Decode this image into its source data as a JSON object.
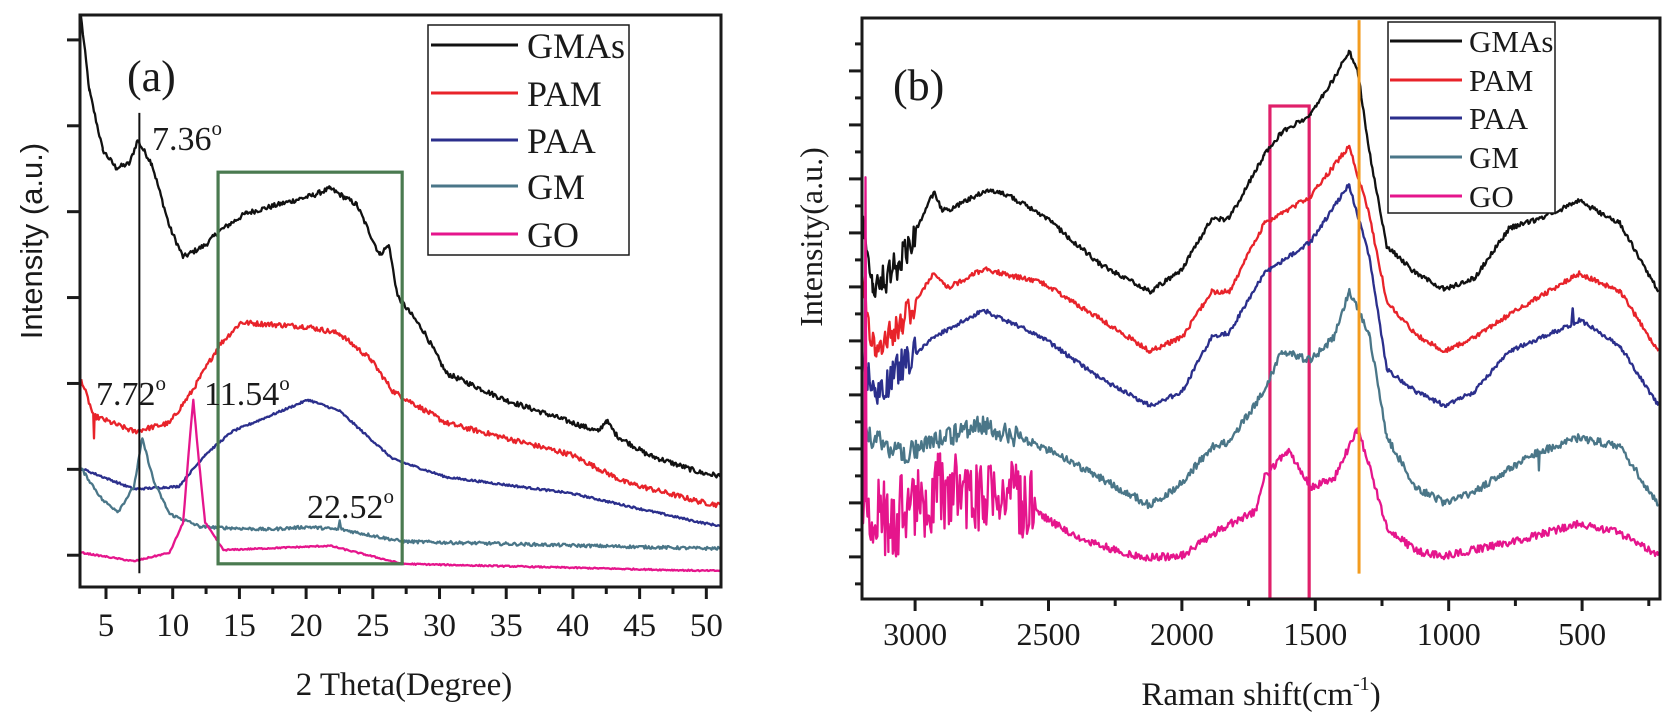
{
  "chart_data": [
    {
      "type": "line",
      "panel_label": "(a)",
      "xlabel": "2 Theta(Degree)",
      "ylabel": "Intensity (a.u.)",
      "xlim": [
        3.05,
        51.1
      ],
      "ylim": [
        -0.37,
        6.29
      ],
      "x_ticks": [
        5,
        10,
        15,
        20,
        25,
        30,
        35,
        40,
        45,
        50
      ],
      "x_tick_labels": [
        "5",
        "10",
        "15",
        "20",
        "25",
        "30",
        "35",
        "40",
        "45",
        "50"
      ],
      "x_minor_ticks": [
        7.5,
        12.5,
        17.5,
        22.5,
        27.5,
        32.5,
        37.5,
        42.5,
        47.5
      ],
      "y_ticks_unlabeled": [
        0,
        1,
        2,
        3,
        4,
        5,
        6
      ],
      "legend": "top-right",
      "grid": false,
      "series": [
        {
          "name": "GMAs",
          "color": "#111111",
          "points": [
            [
              3.1,
              6.3
            ],
            [
              3.75,
              5.41
            ],
            [
              4.75,
              4.72
            ],
            [
              5.75,
              4.51
            ],
            [
              6.76,
              4.56
            ],
            [
              7.36,
              4.83
            ],
            [
              8.43,
              4.56
            ],
            [
              9.77,
              3.82
            ],
            [
              10.78,
              3.47
            ],
            [
              12.43,
              3.61
            ],
            [
              13.46,
              3.77
            ],
            [
              15.47,
              3.98
            ],
            [
              20.5,
              4.19
            ],
            [
              21.8,
              4.27
            ],
            [
              23.8,
              4.08
            ],
            [
              25.5,
              3.5
            ],
            [
              26.2,
              3.61
            ],
            [
              26.85,
              3.02
            ],
            [
              28.85,
              2.6
            ],
            [
              30.5,
              2.12
            ],
            [
              34.9,
              1.81
            ],
            [
              38.9,
              1.6
            ],
            [
              41.9,
              1.44
            ],
            [
              42.5,
              1.57
            ],
            [
              43.3,
              1.39
            ],
            [
              45.6,
              1.17
            ],
            [
              49.6,
              0.96
            ],
            [
              51.1,
              0.92
            ]
          ]
        },
        {
          "name": "PAM",
          "color": "#e8232a",
          "points": [
            [
              3.14,
              2.05
            ],
            [
              3.9,
              1.7
            ],
            [
              4.05,
              1.62
            ],
            [
              4.1,
              1.36
            ],
            [
              4.15,
              1.62
            ],
            [
              7.1,
              1.44
            ],
            [
              9.77,
              1.54
            ],
            [
              11.45,
              1.91
            ],
            [
              13.46,
              2.44
            ],
            [
              15.1,
              2.71
            ],
            [
              20.15,
              2.66
            ],
            [
              22.5,
              2.58
            ],
            [
              24.85,
              2.28
            ],
            [
              26.5,
              1.91
            ],
            [
              30.5,
              1.54
            ],
            [
              39.9,
              1.17
            ],
            [
              43.9,
              0.85
            ],
            [
              49.6,
              0.62
            ],
            [
              51.1,
              0.58
            ]
          ]
        },
        {
          "name": "PAA",
          "color": "#2b2f8c",
          "points": [
            [
              3.14,
              1.01
            ],
            [
              7.1,
              0.77
            ],
            [
              10.45,
              0.8
            ],
            [
              12.43,
              1.17
            ],
            [
              14.45,
              1.44
            ],
            [
              20.15,
              1.81
            ],
            [
              22.5,
              1.68
            ],
            [
              26.5,
              1.12
            ],
            [
              30.5,
              0.91
            ],
            [
              39.9,
              0.72
            ],
            [
              49.6,
              0.38
            ],
            [
              51.1,
              0.34
            ]
          ]
        },
        {
          "name": "GM",
          "color": "#4a7688",
          "points": [
            [
              3.14,
              1.01
            ],
            [
              4.75,
              0.64
            ],
            [
              5.92,
              0.51
            ],
            [
              7.1,
              0.8
            ],
            [
              7.72,
              1.36
            ],
            [
              8.6,
              0.85
            ],
            [
              9.77,
              0.48
            ],
            [
              12.1,
              0.33
            ],
            [
              17.15,
              0.3
            ],
            [
              20.15,
              0.33
            ],
            [
              22.4,
              0.3
            ],
            [
              22.52,
              0.4
            ],
            [
              22.65,
              0.3
            ],
            [
              27.2,
              0.16
            ],
            [
              49.6,
              0.08
            ],
            [
              51.1,
              0.08
            ]
          ]
        },
        {
          "name": "GO",
          "color": "#e5158c",
          "points": [
            [
              3.14,
              0.03
            ],
            [
              7.1,
              -0.07
            ],
            [
              9.77,
              0.03
            ],
            [
              10.78,
              0.38
            ],
            [
              11.2,
              1.2
            ],
            [
              11.54,
              1.81
            ],
            [
              11.9,
              1.2
            ],
            [
              12.43,
              0.38
            ],
            [
              13.8,
              0.06
            ],
            [
              21.8,
              0.11
            ],
            [
              27.2,
              -0.1
            ],
            [
              49.6,
              -0.18
            ],
            [
              51.1,
              -0.18
            ]
          ]
        }
      ],
      "annotations": [
        {
          "text": "7.36",
          "sup": "o",
          "x": 7.36
        },
        {
          "text": "7.72",
          "sup": "o",
          "x": 7.72
        },
        {
          "text": "11.54",
          "sup": "o",
          "x": 11.54
        },
        {
          "text": "22.52",
          "sup": "o",
          "x": 22.52
        }
      ],
      "reference_line": {
        "x": 7.5,
        "y_range": [
          -0.21,
          5.15
        ],
        "color": "#111111"
      },
      "highlight_box": {
        "x_range": [
          13.4,
          27.2
        ],
        "y_range": [
          -0.1,
          4.46
        ],
        "color": "#4a7a50"
      }
    },
    {
      "type": "line",
      "panel_label": "(b)",
      "xlabel_parts": [
        "Raman shift(cm",
        "-1",
        ")"
      ],
      "ylabel": "Intensity(a.u.)",
      "xlim": [
        3199,
        208
      ],
      "ylim": [
        -0.78,
        9.98
      ],
      "x_ticks": [
        3000,
        2500,
        2000,
        1500,
        1000,
        500
      ],
      "x_tick_labels": [
        "3000",
        "2500",
        "2000",
        "1500",
        "1000",
        "500"
      ],
      "x_minor_ticks": [
        2750,
        2250,
        1750,
        1250,
        750,
        250
      ],
      "y_ticks_unlabeled": [
        0,
        1,
        2,
        3,
        4,
        5,
        6,
        7,
        8,
        9
      ],
      "y_minor_ticks": [
        -0.5,
        0.5,
        1.5,
        2.5,
        3.5,
        4.5,
        5.5,
        6.5,
        7.5,
        8.5,
        9.5
      ],
      "legend": "top-right",
      "grid": false,
      "series": [
        {
          "name": "GMAs",
          "color": "#111111",
          "points": [
            [
              3199,
              6.2
            ],
            [
              3190,
              5.9
            ],
            [
              3159,
              4.9
            ],
            [
              3049,
              5.5
            ],
            [
              2929,
              6.76
            ],
            [
              2900,
              6.43
            ],
            [
              2874,
              6.43
            ],
            [
              2743,
              6.76
            ],
            [
              2677,
              6.76
            ],
            [
              2524,
              6.34
            ],
            [
              2305,
              5.41
            ],
            [
              2119,
              4.91
            ],
            [
              1999,
              5.33
            ],
            [
              1889,
              6.26
            ],
            [
              1823,
              6.26
            ],
            [
              1692,
              7.44
            ],
            [
              1626,
              7.86
            ],
            [
              1517,
              8.19
            ],
            [
              1429,
              8.87
            ],
            [
              1374,
              9.37
            ],
            [
              1342,
              9.04
            ],
            [
              1298,
              7.52
            ],
            [
              1232,
              5.75
            ],
            [
              1123,
              5.25
            ],
            [
              1014,
              4.95
            ],
            [
              904,
              5.16
            ],
            [
              773,
              6.09
            ],
            [
              663,
              6.26
            ],
            [
              510,
              6.59
            ],
            [
              357,
              6.17
            ],
            [
              214,
              4.91
            ]
          ]
        },
        {
          "name": "PAM",
          "color": "#e8232a",
          "points": [
            [
              3199,
              5.3
            ],
            [
              3190,
              4.91
            ],
            [
              3150,
              3.73
            ],
            [
              3049,
              4.4
            ],
            [
              2929,
              5.25
            ],
            [
              2874,
              4.99
            ],
            [
              2743,
              5.33
            ],
            [
              2524,
              5.08
            ],
            [
              2305,
              4.4
            ],
            [
              2119,
              3.81
            ],
            [
              1999,
              4.07
            ],
            [
              1889,
              4.91
            ],
            [
              1823,
              4.91
            ],
            [
              1692,
              6.17
            ],
            [
              1517,
              6.68
            ],
            [
              1374,
              7.61
            ],
            [
              1298,
              6.34
            ],
            [
              1232,
              4.74
            ],
            [
              1123,
              4.11
            ],
            [
              1014,
              3.81
            ],
            [
              904,
              4.07
            ],
            [
              773,
              4.49
            ],
            [
              510,
              5.25
            ],
            [
              357,
              4.91
            ],
            [
              214,
              3.81
            ]
          ]
        },
        {
          "name": "PAA",
          "color": "#2b2f8c",
          "points": [
            [
              3199,
              3.9
            ],
            [
              3190,
              3.56
            ],
            [
              3150,
              2.97
            ],
            [
              3049,
              3.56
            ],
            [
              2929,
              4.07
            ],
            [
              2743,
              4.57
            ],
            [
              2524,
              4.07
            ],
            [
              2305,
              3.3
            ],
            [
              2119,
              2.8
            ],
            [
              1999,
              3.06
            ],
            [
              1889,
              4.07
            ],
            [
              1823,
              4.15
            ],
            [
              1692,
              5.25
            ],
            [
              1517,
              5.84
            ],
            [
              1374,
              6.9
            ],
            [
              1298,
              5.58
            ],
            [
              1232,
              3.47
            ],
            [
              1123,
              3.06
            ],
            [
              1014,
              2.8
            ],
            [
              904,
              3.06
            ],
            [
              773,
              3.81
            ],
            [
              540,
              4.3
            ],
            [
              535,
              4.6
            ],
            [
              530,
              4.3
            ],
            [
              510,
              4.4
            ],
            [
              357,
              3.9
            ],
            [
              214,
              2.8
            ]
          ]
        },
        {
          "name": "GM",
          "color": "#4a7688",
          "points": [
            [
              3199,
              2.6
            ],
            [
              3190,
              2.3
            ],
            [
              3049,
              1.88
            ],
            [
              2743,
              2.47
            ],
            [
              2524,
              2.04
            ],
            [
              2305,
              1.46
            ],
            [
              2119,
              0.95
            ],
            [
              1999,
              1.37
            ],
            [
              1889,
              2.04
            ],
            [
              1823,
              2.13
            ],
            [
              1692,
              3.06
            ],
            [
              1626,
              3.81
            ],
            [
              1517,
              3.64
            ],
            [
              1429,
              4.07
            ],
            [
              1374,
              4.91
            ],
            [
              1298,
              4.15
            ],
            [
              1232,
              2.21
            ],
            [
              1123,
              1.29
            ],
            [
              1014,
              1.0
            ],
            [
              904,
              1.2
            ],
            [
              773,
              1.63
            ],
            [
              665,
              1.95
            ],
            [
              662,
              1.6
            ],
            [
              659,
              1.95
            ],
            [
              510,
              2.21
            ],
            [
              357,
              2.04
            ],
            [
              214,
              0.95
            ]
          ]
        },
        {
          "name": "GO",
          "color": "#e5158c",
          "points": [
            [
              3199,
              1.2
            ],
            [
              3190,
              1.03
            ],
            [
              3186,
              7.03
            ],
            [
              3182,
              1.03
            ],
            [
              3100,
              0.61
            ],
            [
              2929,
              1.2
            ],
            [
              2743,
              1.12
            ],
            [
              2600,
              1.03
            ],
            [
              2400,
              0.36
            ],
            [
              2150,
              -0.02
            ],
            [
              1999,
              0.02
            ],
            [
              1850,
              0.53
            ],
            [
              1720,
              0.86
            ],
            [
              1692,
              1.46
            ],
            [
              1604,
              1.97
            ],
            [
              1517,
              1.29
            ],
            [
              1429,
              1.46
            ],
            [
              1342,
              2.38
            ],
            [
              1298,
              1.71
            ],
            [
              1232,
              0.53
            ],
            [
              1123,
              0.11
            ],
            [
              1014,
              0.02
            ],
            [
              773,
              0.27
            ],
            [
              510,
              0.61
            ],
            [
              357,
              0.44
            ],
            [
              214,
              0.02
            ]
          ]
        }
      ],
      "highlight_box": {
        "x_range": [
          1670,
          1523
        ],
        "y_range": [
          -0.78,
          8.35
        ],
        "color": "#e0206a"
      },
      "reference_line": {
        "x": 1336,
        "y_range": [
          -0.31,
          9.94
        ],
        "color": "#f39c1f"
      }
    }
  ]
}
